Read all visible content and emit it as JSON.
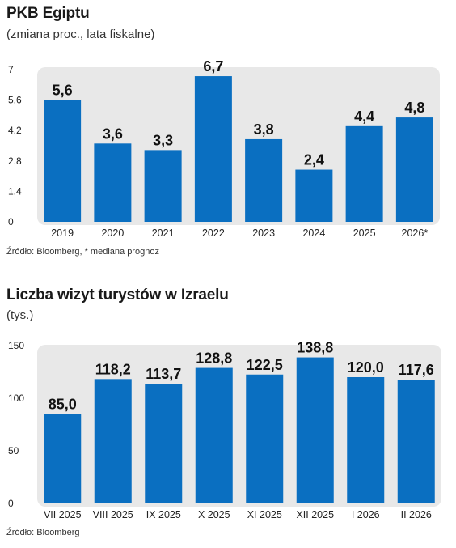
{
  "colors": {
    "bar": "#0a6fc1",
    "panel": "#e8e8e8"
  },
  "chart1": {
    "title": "PKB Egiptu",
    "subtitle": "(zmiana proc., lata fiskalne)",
    "source": "Źródło: Bloomberg,  * mediana prognoz"
  },
  "chart2": {
    "title": "Liczba wizyt turystów w Izraelu",
    "subtitle": "(tys.)",
    "source": "Źródło: Bloomberg"
  },
  "chart_data": [
    {
      "type": "bar",
      "title": "PKB Egiptu",
      "subtitle": "(zmiana proc., lata fiskalne)",
      "categories": [
        "2019",
        "2020",
        "2021",
        "2022",
        "2023",
        "2024",
        "2025",
        "2026*"
      ],
      "values": [
        5.6,
        3.6,
        3.3,
        6.7,
        3.8,
        2.4,
        4.4,
        4.8
      ],
      "value_labels": [
        "5,6",
        "3,6",
        "3,3",
        "6,7",
        "3,8",
        "2,4",
        "4,4",
        "4,8"
      ],
      "yticks": [
        "0",
        "1.4",
        "2.8",
        "4.2",
        "5.6",
        "7"
      ],
      "ylim": [
        0,
        7
      ],
      "xlabel": "",
      "ylabel": "",
      "grid": false
    },
    {
      "type": "bar",
      "title": "Liczba wizyt turystów w Izraelu",
      "subtitle": "(tys.)",
      "categories": [
        "VII 2025",
        "VIII 2025",
        "IX 2025",
        "X 2025",
        "XI 2025",
        "XII 2025",
        "I 2026",
        "II 2026"
      ],
      "values": [
        85.0,
        118.2,
        113.7,
        128.8,
        122.5,
        138.8,
        120.0,
        117.6
      ],
      "value_labels": [
        "85,0",
        "118,2",
        "113,7",
        "128,8",
        "122,5",
        "138,8",
        "120,0",
        "117,6"
      ],
      "yticks": [
        "0",
        "50",
        "100",
        "150"
      ],
      "ylim": [
        0,
        150
      ],
      "xlabel": "",
      "ylabel": "",
      "grid": false
    }
  ]
}
